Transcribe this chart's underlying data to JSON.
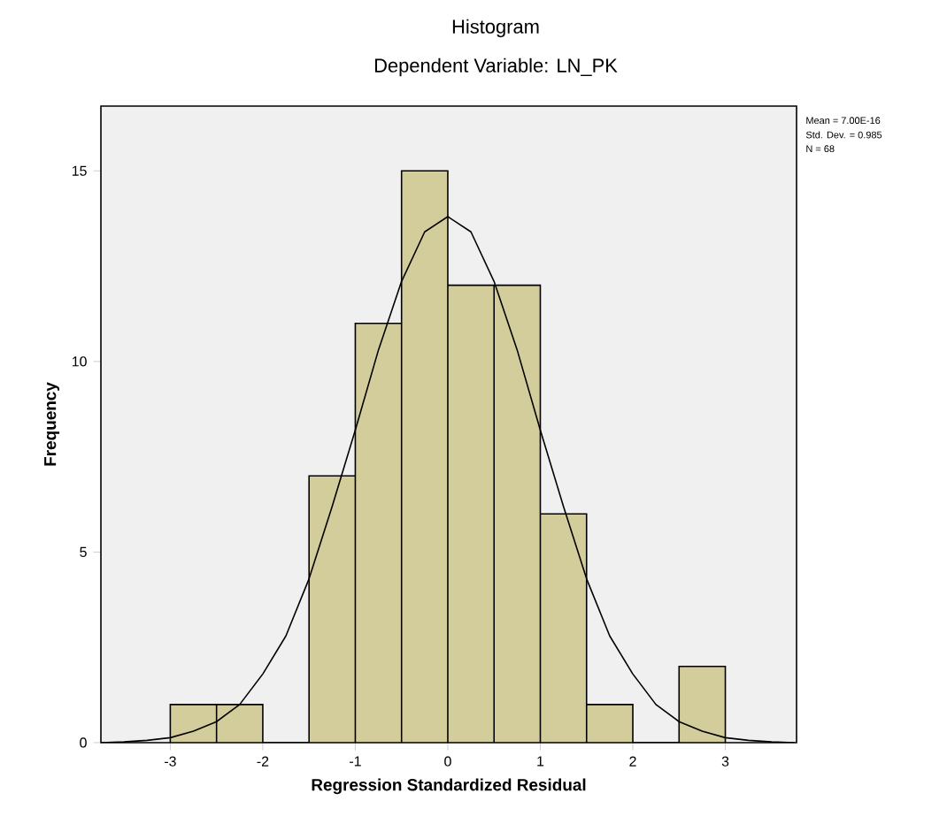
{
  "chart_data": {
    "type": "histogram",
    "title": "Histogram",
    "subtitle": "Dependent Variable: LN_PK",
    "xlabel": "Regression Standardized Residual",
    "ylabel": "Frequency",
    "bins": [
      -3,
      -2.5,
      -2,
      -1.5,
      -1,
      -0.5,
      0,
      0.5,
      1,
      1.5,
      2,
      2.5,
      3
    ],
    "values": [
      1,
      1,
      0,
      7,
      11,
      15,
      12,
      12,
      6,
      1,
      0,
      2
    ],
    "color": "#d3cd9b",
    "series": [
      {
        "type": "line",
        "color": "#000000",
        "x": [
          -3.75,
          -3.5,
          -3.25,
          -3,
          -2.75,
          -2.5,
          -2.25,
          -2,
          -1.75,
          -1.5,
          -1.25,
          -1,
          -0.75,
          -0.5,
          -0.25,
          0,
          0.25,
          0.5,
          0.75,
          1,
          1.25,
          1.5,
          1.75,
          2,
          2.25,
          2.5,
          2.75,
          3,
          3.25,
          3.5,
          3.75
        ],
        "values": [
          0,
          0.02,
          0.06,
          0.13,
          0.3,
          0.55,
          1.0,
          1.8,
          2.8,
          4.3,
          6.2,
          8.2,
          10.3,
          12.1,
          13.4,
          13.8,
          13.4,
          12.1,
          10.3,
          8.2,
          6.2,
          4.3,
          2.8,
          1.8,
          1.0,
          0.55,
          0.3,
          0.13,
          0.06,
          0.02,
          0
        ]
      }
    ],
    "xlim": [
      -3.75,
      3.77
    ],
    "ylim": [
      0,
      16.7
    ],
    "xticks": [
      -3,
      -2,
      -1,
      0,
      1,
      2,
      3
    ],
    "yticks": [
      0,
      5,
      10,
      15
    ],
    "grid": false,
    "annotations": [
      "Mean = 7.00E-16",
      "Std. Dev. = 0.985",
      "N = 68"
    ]
  }
}
